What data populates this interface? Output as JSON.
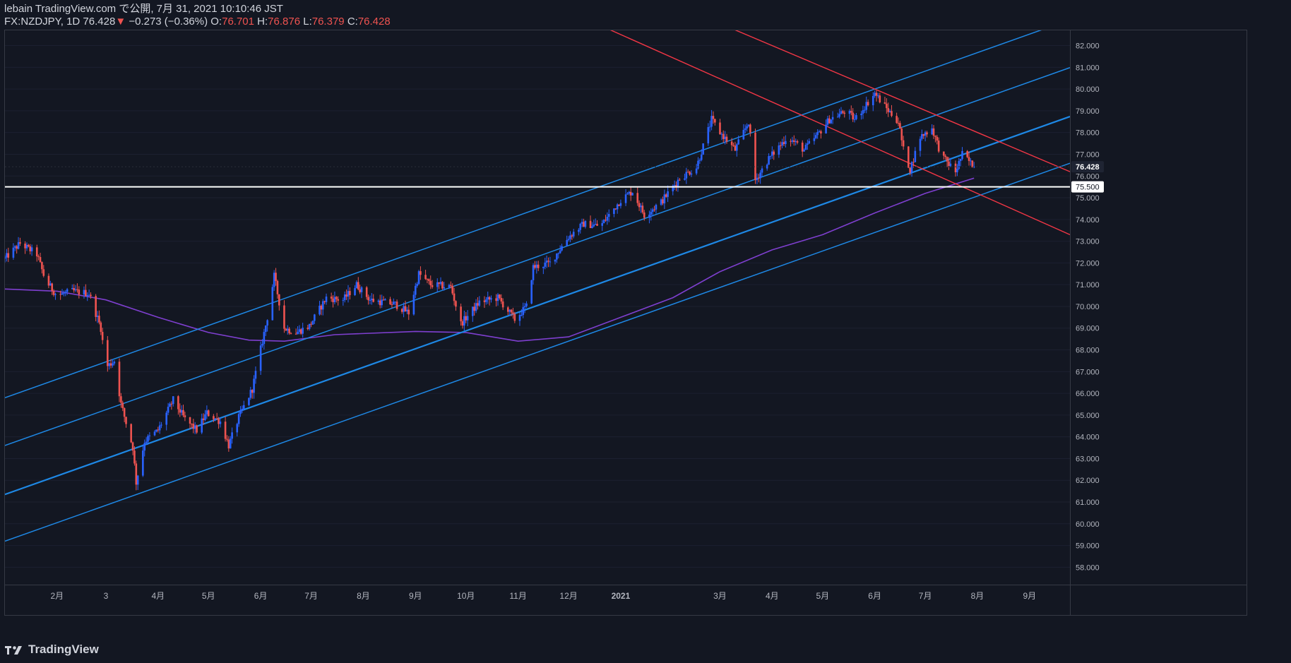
{
  "header": {
    "published": "lebain TradingView.com で公開, 7月 31, 2021 10:10:46 JST",
    "symbol": "FX:NZDJPY, 1D",
    "last": "76.428",
    "arrow": "▼",
    "change": "−0.273 (−0.36%)",
    "o_label": "O:",
    "o_value": "76.701",
    "h_label": "H:",
    "h_value": "76.876",
    "l_label": "L:",
    "l_value": "76.379",
    "c_label": "C:",
    "c_value": "76.428"
  },
  "footer": {
    "brand": "TradingView",
    "logo_icon": "tradingview-logo-icon"
  },
  "colors": {
    "background": "#131722",
    "up": "#2962ff",
    "down": "#ef5350",
    "channel": "#1e88e5",
    "downtrend": "#f23645",
    "ma": "#7e3fcf",
    "hline": "#ffffff",
    "axis_text": "#b2b5be"
  },
  "chart_data": {
    "type": "candlestick",
    "title": "",
    "xlabel": "",
    "ylabel": "",
    "ylim": [
      57.2,
      82.7
    ],
    "y_ticks": [
      58,
      59,
      60,
      61,
      62,
      63,
      64,
      65,
      66,
      67,
      68,
      69,
      70,
      71,
      72,
      73,
      74,
      75,
      76,
      77,
      78,
      79,
      80,
      81,
      82
    ],
    "y_tick_labels": [
      "58.000",
      "59.000",
      "60.000",
      "61.000",
      "62.000",
      "63.000",
      "64.000",
      "65.000",
      "66.000",
      "67.000",
      "68.000",
      "69.000",
      "70.000",
      "71.000",
      "72.000",
      "73.000",
      "74.000",
      "75.000",
      "76.000",
      "77.000",
      "78.000",
      "79.000",
      "80.000",
      "81.000",
      "82.000"
    ],
    "x_range": [
      "2020-01-01",
      "2021-09-25"
    ],
    "x_ticks": [
      {
        "date": "2020-02-01",
        "label": "2月"
      },
      {
        "date": "2020-03-01",
        "label": "3"
      },
      {
        "date": "2020-04-01",
        "label": "4月"
      },
      {
        "date": "2020-05-01",
        "label": "5月"
      },
      {
        "date": "2020-06-01",
        "label": "6月"
      },
      {
        "date": "2020-07-01",
        "label": "7月"
      },
      {
        "date": "2020-08-01",
        "label": "8月"
      },
      {
        "date": "2020-09-01",
        "label": "9月"
      },
      {
        "date": "2020-10-01",
        "label": "10月"
      },
      {
        "date": "2020-11-01",
        "label": "11月"
      },
      {
        "date": "2020-12-01",
        "label": "12月"
      },
      {
        "date": "2021-01-01",
        "label": "2021"
      },
      {
        "date": "2021-03-01",
        "label": "3月"
      },
      {
        "date": "2021-04-01",
        "label": "4月"
      },
      {
        "date": "2021-05-01",
        "label": "5月"
      },
      {
        "date": "2021-06-01",
        "label": "6月"
      },
      {
        "date": "2021-07-01",
        "label": "7月"
      },
      {
        "date": "2021-08-01",
        "label": "8月"
      },
      {
        "date": "2021-09-01",
        "label": "9月"
      }
    ],
    "price_path": [
      [
        "2020-01-01",
        72.2
      ],
      [
        "2020-01-10",
        72.9
      ],
      [
        "2020-01-20",
        72.4
      ],
      [
        "2020-01-25",
        71.2
      ],
      [
        "2020-02-01",
        70.5
      ],
      [
        "2020-02-10",
        70.7
      ],
      [
        "2020-02-20",
        70.6
      ],
      [
        "2020-02-27",
        69.0
      ],
      [
        "2020-03-01",
        67.2
      ],
      [
        "2020-03-06",
        67.5
      ],
      [
        "2020-03-10",
        65.5
      ],
      [
        "2020-03-17",
        63.5
      ],
      [
        "2020-03-19",
        61.9
      ],
      [
        "2020-03-24",
        63.8
      ],
      [
        "2020-04-01",
        64.3
      ],
      [
        "2020-04-10",
        65.7
      ],
      [
        "2020-04-17",
        64.8
      ],
      [
        "2020-04-24",
        64.3
      ],
      [
        "2020-04-30",
        65.1
      ],
      [
        "2020-05-08",
        64.7
      ],
      [
        "2020-05-13",
        63.6
      ],
      [
        "2020-05-19",
        64.9
      ],
      [
        "2020-05-27",
        66.2
      ],
      [
        "2020-06-05",
        69.5
      ],
      [
        "2020-06-09",
        71.4
      ],
      [
        "2020-06-15",
        69.0
      ],
      [
        "2020-06-22",
        68.8
      ],
      [
        "2020-06-30",
        69.1
      ],
      [
        "2020-07-10",
        70.4
      ],
      [
        "2020-07-20",
        70.3
      ],
      [
        "2020-07-28",
        71.0
      ],
      [
        "2020-08-05",
        70.3
      ],
      [
        "2020-08-20",
        70.1
      ],
      [
        "2020-08-28",
        69.7
      ],
      [
        "2020-09-03",
        71.5
      ],
      [
        "2020-09-10",
        71.0
      ],
      [
        "2020-09-22",
        70.9
      ],
      [
        "2020-09-28",
        69.2
      ],
      [
        "2020-10-09",
        70.2
      ],
      [
        "2020-10-20",
        70.4
      ],
      [
        "2020-10-30",
        69.4
      ],
      [
        "2020-11-06",
        70.0
      ],
      [
        "2020-11-10",
        71.8
      ],
      [
        "2020-11-20",
        72.0
      ],
      [
        "2020-12-01",
        73.2
      ],
      [
        "2020-12-10",
        73.8
      ],
      [
        "2020-12-20",
        73.7
      ],
      [
        "2021-01-01",
        74.9
      ],
      [
        "2021-01-08",
        75.3
      ],
      [
        "2021-01-15",
        74.2
      ],
      [
        "2021-01-25",
        74.8
      ],
      [
        "2021-02-05",
        75.9
      ],
      [
        "2021-02-15",
        76.4
      ],
      [
        "2021-02-24",
        78.6
      ],
      [
        "2021-03-01",
        78.0
      ],
      [
        "2021-03-10",
        77.2
      ],
      [
        "2021-03-18",
        78.5
      ],
      [
        "2021-03-22",
        75.8
      ],
      [
        "2021-03-30",
        76.8
      ],
      [
        "2021-04-10",
        77.8
      ],
      [
        "2021-04-20",
        77.2
      ],
      [
        "2021-04-28",
        77.9
      ],
      [
        "2021-05-05",
        78.6
      ],
      [
        "2021-05-15",
        79.0
      ],
      [
        "2021-05-20",
        78.6
      ],
      [
        "2021-05-28",
        79.4
      ],
      [
        "2021-06-01",
        79.8
      ],
      [
        "2021-06-08",
        79.1
      ],
      [
        "2021-06-15",
        78.5
      ],
      [
        "2021-06-18",
        77.2
      ],
      [
        "2021-06-22",
        76.3
      ],
      [
        "2021-06-28",
        77.8
      ],
      [
        "2021-07-05",
        78.2
      ],
      [
        "2021-07-09",
        77.3
      ],
      [
        "2021-07-12",
        76.8
      ],
      [
        "2021-07-19",
        76.2
      ],
      [
        "2021-07-23",
        77.0
      ],
      [
        "2021-07-30",
        76.43
      ]
    ],
    "series": [
      {
        "name": "",
        "kind": "sma",
        "points": [
          [
            "2020-01-01",
            70.8
          ],
          [
            "2020-02-01",
            70.7
          ],
          [
            "2020-03-01",
            70.3
          ],
          [
            "2020-04-01",
            69.5
          ],
          [
            "2020-05-01",
            68.8
          ],
          [
            "2020-05-25",
            68.45
          ],
          [
            "2020-06-15",
            68.4
          ],
          [
            "2020-07-15",
            68.7
          ],
          [
            "2020-09-01",
            68.85
          ],
          [
            "2020-10-01",
            68.8
          ],
          [
            "2020-11-01",
            68.4
          ],
          [
            "2020-12-01",
            68.6
          ],
          [
            "2021-01-01",
            69.5
          ],
          [
            "2021-02-01",
            70.4
          ],
          [
            "2021-03-01",
            71.6
          ],
          [
            "2021-04-01",
            72.6
          ],
          [
            "2021-05-01",
            73.3
          ],
          [
            "2021-06-01",
            74.3
          ],
          [
            "2021-07-01",
            75.2
          ],
          [
            "2021-07-30",
            75.9
          ]
        ]
      }
    ],
    "channel_lines": [
      {
        "style": "thin",
        "points": [
          [
            "2020-01-01",
            65.8
          ],
          [
            "2021-06-01",
            80.0
          ]
        ]
      },
      {
        "style": "thin",
        "points": [
          [
            "2020-01-01",
            63.6
          ],
          [
            "2021-06-01",
            77.8
          ]
        ]
      },
      {
        "style": "thick",
        "points": [
          [
            "2020-01-01",
            61.35
          ],
          [
            "2021-06-01",
            75.55
          ]
        ]
      },
      {
        "style": "thin",
        "points": [
          [
            "2020-01-01",
            59.2
          ],
          [
            "2021-06-01",
            73.4
          ]
        ]
      }
    ],
    "downtrend_lines": [
      {
        "points": [
          [
            "2021-06-01",
            80.0
          ],
          [
            "2021-09-25",
            76.2
          ]
        ]
      },
      {
        "points": [
          [
            "2021-06-01",
            77.3
          ],
          [
            "2021-09-25",
            73.3
          ]
        ]
      }
    ],
    "horizontal_line": {
      "value": 75.5,
      "label": "75.500"
    },
    "last_price_label": "76.428",
    "last_price": 76.428
  }
}
